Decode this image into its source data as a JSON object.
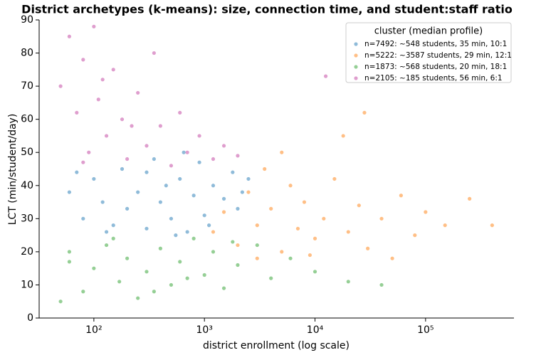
{
  "chart_data": {
    "type": "scatter",
    "title": "District archetypes (k-means): size, connection time, and student:staff ratio",
    "x_label": "district enrollment (log scale)",
    "y_label": "LCT (min/student/day)",
    "x_scale": "log",
    "xlim": [
      32,
      630000
    ],
    "xticks": [
      {
        "value": 100,
        "label": "10²"
      },
      {
        "value": 1000,
        "label": "10³"
      },
      {
        "value": 10000,
        "label": "10⁴"
      },
      {
        "value": 100000,
        "label": "10⁵"
      }
    ],
    "ylim": [
      0,
      90
    ],
    "yticks": [
      0,
      10,
      20,
      30,
      40,
      50,
      60,
      70,
      80,
      90
    ],
    "legend_title": "cluster (median profile)",
    "legend_position": "upper right",
    "series": [
      {
        "name": "n=7492: ~548 students, 35 min, 10:1",
        "color": "#1f77b4",
        "x": [
          60,
          80,
          100,
          120,
          150,
          180,
          200,
          250,
          300,
          350,
          400,
          500,
          600,
          700,
          800,
          900,
          1000,
          1200,
          1500,
          1800,
          2200,
          2500,
          70,
          130,
          450,
          550,
          650,
          1100,
          300,
          2000
        ],
        "values": [
          38,
          30,
          42,
          35,
          28,
          45,
          33,
          38,
          27,
          48,
          35,
          30,
          42,
          26,
          37,
          47,
          31,
          40,
          36,
          44,
          38,
          42,
          44,
          26,
          40,
          25,
          50,
          28,
          44,
          33
        ]
      },
      {
        "name": "n=5222: ~3587 students, 29 min, 12:1",
        "color": "#ff7f0e",
        "x": [
          1200,
          1500,
          2000,
          2500,
          3000,
          3500,
          4000,
          5000,
          6000,
          7000,
          8000,
          10000,
          12000,
          15000,
          20000,
          25000,
          30000,
          40000,
          60000,
          80000,
          100000,
          150000,
          250000,
          400000,
          5000,
          18000,
          28000,
          3000,
          9000,
          50000
        ],
        "values": [
          26,
          32,
          22,
          38,
          28,
          45,
          33,
          20,
          40,
          27,
          35,
          24,
          30,
          42,
          26,
          34,
          21,
          30,
          37,
          25,
          32,
          28,
          36,
          28,
          50,
          55,
          62,
          18,
          19,
          18
        ]
      },
      {
        "name": "n=1873: ~568 students, 20 min, 18:1",
        "color": "#2ca02c",
        "x": [
          60,
          80,
          100,
          130,
          170,
          200,
          250,
          300,
          400,
          500,
          600,
          800,
          1000,
          1200,
          1500,
          2000,
          3000,
          4000,
          6000,
          10000,
          20000,
          40000,
          150,
          350,
          700,
          1800,
          50,
          60
        ],
        "values": [
          20,
          8,
          15,
          22,
          11,
          18,
          6,
          14,
          21,
          10,
          17,
          24,
          13,
          20,
          9,
          16,
          22,
          12,
          18,
          14,
          11,
          10,
          24,
          8,
          12,
          23,
          5,
          17
        ]
      },
      {
        "name": "n=2105: ~185 students, 56 min, 6:1",
        "color": "#c03d9e",
        "x": [
          50,
          60,
          70,
          80,
          90,
          100,
          110,
          130,
          150,
          180,
          200,
          250,
          300,
          350,
          400,
          500,
          600,
          700,
          900,
          1200,
          1500,
          2000,
          120,
          220,
          12500,
          80
        ],
        "values": [
          70,
          85,
          62,
          78,
          50,
          88,
          66,
          55,
          75,
          60,
          48,
          68,
          52,
          80,
          58,
          46,
          62,
          50,
          55,
          48,
          52,
          49,
          72,
          58,
          73,
          47
        ]
      }
    ]
  }
}
